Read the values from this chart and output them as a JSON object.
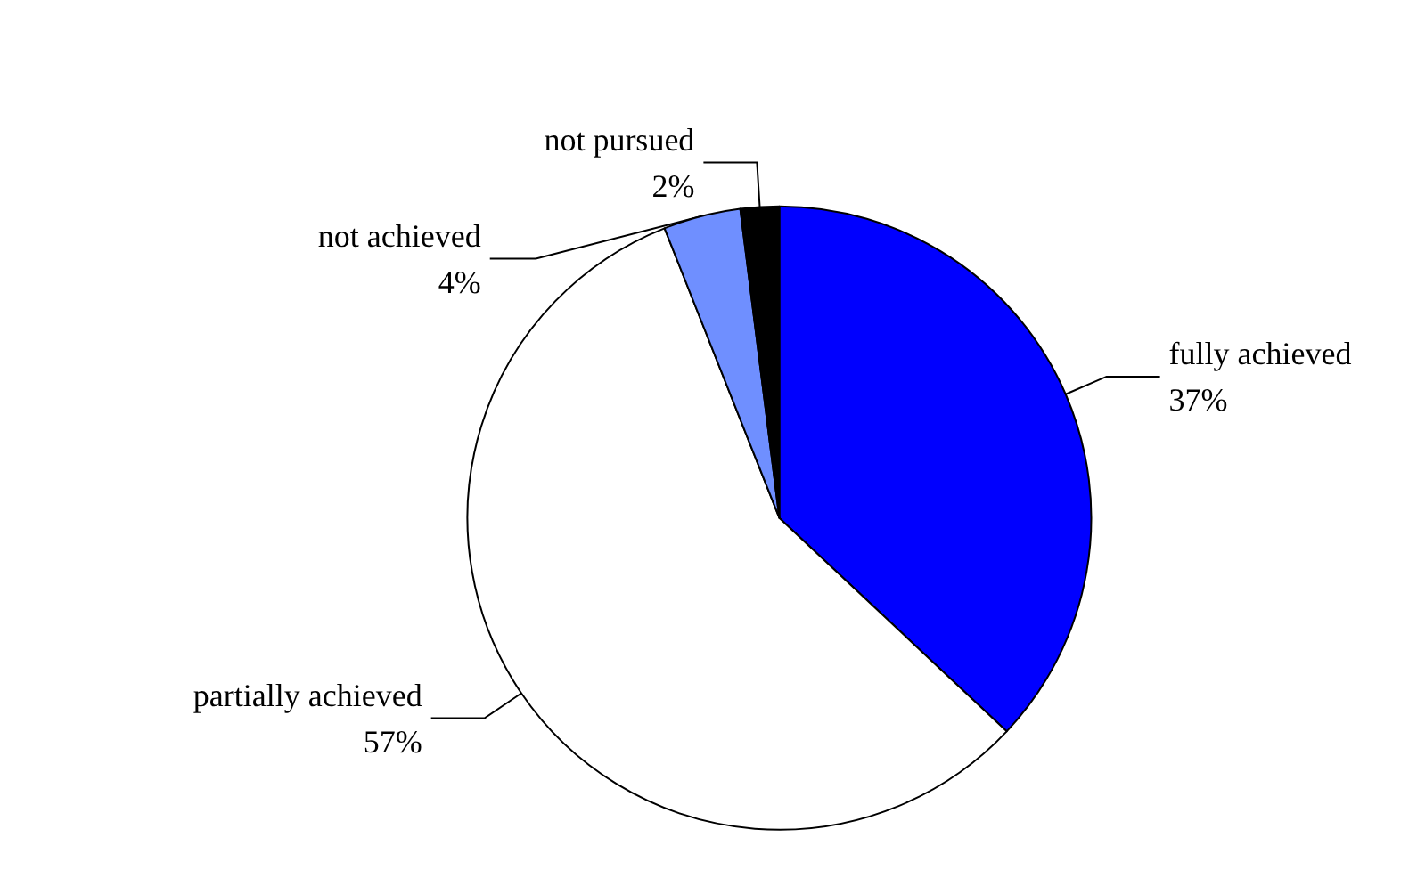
{
  "chart_data": {
    "type": "pie",
    "categories": [
      "fully achieved",
      "partially achieved",
      "not achieved",
      "not pursued"
    ],
    "values": [
      37,
      57,
      4,
      2
    ],
    "value_labels": [
      "37%",
      "57%",
      "4%",
      "2%"
    ],
    "colors": [
      "#0000ff",
      "#ffffff",
      "#6f8fff",
      "#000000"
    ],
    "legend": false
  }
}
